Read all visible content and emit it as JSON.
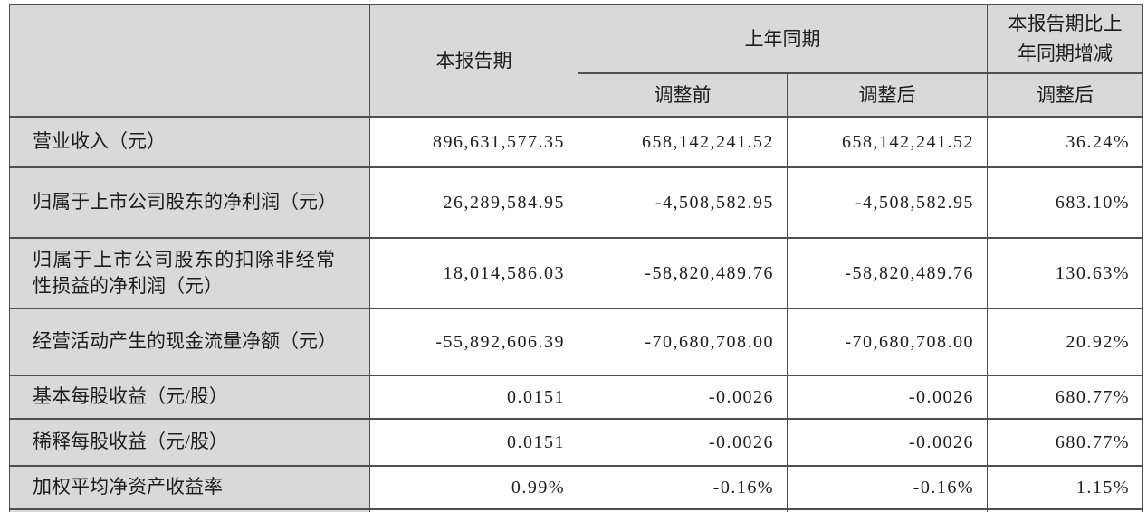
{
  "document": {
    "kind": "financial-summary-table",
    "language": "zh-CN"
  },
  "colors": {
    "header_bg": "#d9d9d9",
    "label_bg": "#d9d9d9",
    "data_bg": "#ffffff",
    "border": "#4f4f4f",
    "text": "#1d1d1d"
  },
  "table": {
    "header": {
      "row_label_col": "",
      "current_period": "本报告期",
      "prior_period_group": "上年同期",
      "change_group": "本报告期比上年同期增减",
      "sub_before_adjust": "调整前",
      "sub_after_adjust": "调整后",
      "sub_change_after_adjust": "调整后"
    },
    "rows": [
      {
        "label": "营业收入（元）",
        "current": "896,631,577.35",
        "prior_before": "658,142,241.52",
        "prior_after": "658,142,241.52",
        "change": "36.24%"
      },
      {
        "label": "归属于上市公司股东的净利润（元）",
        "current": "26,289,584.95",
        "prior_before": "-4,508,582.95",
        "prior_after": "-4,508,582.95",
        "change": "683.10%"
      },
      {
        "label": "归属于上市公司股东的扣除非经常性损益的净利润（元）",
        "current": "18,014,586.03",
        "prior_before": "-58,820,489.76",
        "prior_after": "-58,820,489.76",
        "change": "130.63%"
      },
      {
        "label": "经营活动产生的现金流量净额（元）",
        "current": "-55,892,606.39",
        "prior_before": "-70,680,708.00",
        "prior_after": "-70,680,708.00",
        "change": "20.92%"
      },
      {
        "label": "基本每股收益（元/股）",
        "current": "0.0151",
        "prior_before": "-0.0026",
        "prior_after": "-0.0026",
        "change": "680.77%"
      },
      {
        "label": "稀释每股收益（元/股）",
        "current": "0.0151",
        "prior_before": "-0.0026",
        "prior_after": "-0.0026",
        "change": "680.77%"
      },
      {
        "label": "加权平均净资产收益率",
        "current": "0.99%",
        "prior_before": "-0.16%",
        "prior_after": "-0.16%",
        "change": "1.15%"
      }
    ]
  }
}
